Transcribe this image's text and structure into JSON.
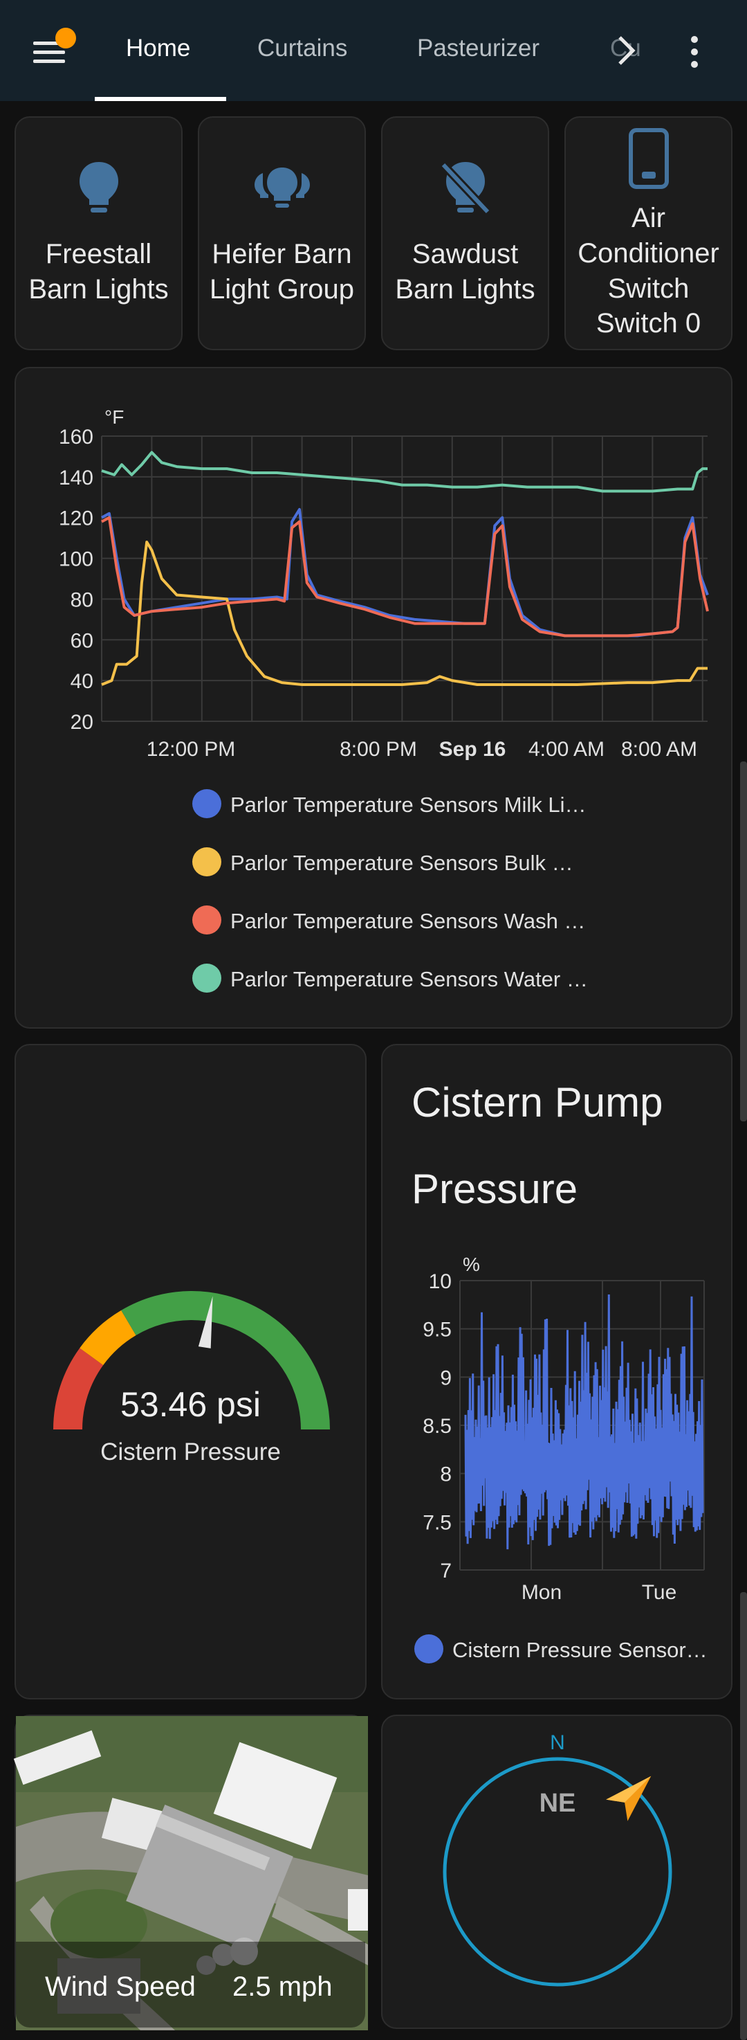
{
  "header": {
    "tabs": [
      {
        "label": "Home",
        "active": true
      },
      {
        "label": "Curtains",
        "active": false
      },
      {
        "label": "Pasteurizer",
        "active": false
      },
      {
        "label": "Cu",
        "active": false
      }
    ]
  },
  "buttons": [
    {
      "label_lines": [
        "Freestall",
        "Barn Lights"
      ],
      "icon": "lightbulb-icon"
    },
    {
      "label_lines": [
        "Heifer Barn",
        "Light Group"
      ],
      "icon": "lightbulb-group-icon"
    },
    {
      "label_lines": [
        "Sawdust",
        "Barn Lights"
      ],
      "icon": "lightbulb-off-icon"
    },
    {
      "label_lines": [
        "Air",
        "Conditioner",
        "Switch",
        "Switch 0"
      ],
      "icon": "phone-switch-icon"
    }
  ],
  "colors": {
    "accent_blue": "#44739e",
    "milk": "#4b6fd9",
    "bulk": "#f4c04a",
    "wash": "#ef6b55",
    "water": "#6fcba8",
    "gauge_red": "#db4437",
    "gauge_orange": "#ffa600",
    "gauge_green": "#43a047",
    "compass_ring": "#1c9ac8",
    "compass_arrow": "#f59b16"
  },
  "chart_data": [
    {
      "type": "line",
      "unit": "°F",
      "yticks": [
        20,
        40,
        60,
        80,
        100,
        120,
        140,
        160
      ],
      "ylim": [
        20,
        160
      ],
      "xlabels": [
        {
          "label": "12:00 PM",
          "bold": false
        },
        {
          "label": "8:00 PM",
          "bold": false
        },
        {
          "label": "Sep 16",
          "bold": true
        },
        {
          "label": "4:00 AM",
          "bold": false
        },
        {
          "label": "8:00 AM",
          "bold": false
        }
      ],
      "x_hours": [
        0,
        2,
        4,
        6,
        8,
        10,
        12,
        14,
        16,
        18,
        20,
        22,
        24
      ],
      "series": [
        {
          "name": "Parlor Temperature Sensors Milk Li…",
          "color": "#4b6fd9",
          "points": [
            [
              0,
              120
            ],
            [
              0.3,
              122
            ],
            [
              0.6,
              100
            ],
            [
              0.9,
              80
            ],
            [
              1.3,
              72
            ],
            [
              2,
              74
            ],
            [
              3,
              76
            ],
            [
              4,
              78
            ],
            [
              5,
              80
            ],
            [
              6,
              80
            ],
            [
              7,
              81
            ],
            [
              7.4,
              80
            ],
            [
              7.6,
              118
            ],
            [
              7.9,
              124
            ],
            [
              8.2,
              92
            ],
            [
              8.6,
              82
            ],
            [
              9.5,
              79
            ],
            [
              10.5,
              76
            ],
            [
              11.5,
              72
            ],
            [
              12.5,
              70
            ],
            [
              13.5,
              69
            ],
            [
              14.5,
              68
            ],
            [
              15.3,
              68
            ],
            [
              15.7,
              116
            ],
            [
              16.0,
              120
            ],
            [
              16.3,
              90
            ],
            [
              16.8,
              72
            ],
            [
              17.5,
              65
            ],
            [
              18.5,
              62
            ],
            [
              20,
              62
            ],
            [
              21,
              62
            ],
            [
              21.4,
              62
            ],
            [
              22,
              63
            ],
            [
              22.8,
              64
            ],
            [
              23,
              66
            ],
            [
              23.3,
              110
            ],
            [
              23.6,
              120
            ],
            [
              23.9,
              92
            ],
            [
              24.2,
              82
            ]
          ]
        },
        {
          "name": "Parlor Temperature Sensors Bulk …",
          "color": "#f4c04a",
          "points": [
            [
              0,
              38
            ],
            [
              0.4,
              40
            ],
            [
              0.6,
              48
            ],
            [
              1.0,
              48
            ],
            [
              1.2,
              50
            ],
            [
              1.4,
              52
            ],
            [
              1.6,
              88
            ],
            [
              1.8,
              108
            ],
            [
              2.0,
              104
            ],
            [
              2.4,
              90
            ],
            [
              3,
              82
            ],
            [
              4,
              81
            ],
            [
              5,
              80
            ],
            [
              5.3,
              65
            ],
            [
              5.8,
              52
            ],
            [
              6.5,
              42
            ],
            [
              7.2,
              39
            ],
            [
              8,
              38
            ],
            [
              10,
              38
            ],
            [
              12,
              38
            ],
            [
              13,
              39
            ],
            [
              13.5,
              42
            ],
            [
              14,
              40
            ],
            [
              15,
              38
            ],
            [
              17,
              38
            ],
            [
              19,
              38
            ],
            [
              21,
              39
            ],
            [
              22,
              39
            ],
            [
              23,
              40
            ],
            [
              23.5,
              40
            ],
            [
              23.8,
              46
            ],
            [
              24.2,
              46
            ]
          ]
        },
        {
          "name": "Parlor Temperature Sensors Wash …",
          "color": "#ef6b55",
          "points": [
            [
              0,
              118
            ],
            [
              0.3,
              120
            ],
            [
              0.6,
              95
            ],
            [
              0.9,
              76
            ],
            [
              1.3,
              72
            ],
            [
              2,
              74
            ],
            [
              3,
              75
            ],
            [
              4,
              76
            ],
            [
              5,
              78
            ],
            [
              6,
              79
            ],
            [
              7,
              80
            ],
            [
              7.3,
              79
            ],
            [
              7.6,
              115
            ],
            [
              7.9,
              118
            ],
            [
              8.2,
              88
            ],
            [
              8.6,
              81
            ],
            [
              9.5,
              78
            ],
            [
              10.5,
              75
            ],
            [
              11.5,
              71
            ],
            [
              12.5,
              68
            ],
            [
              13.5,
              68
            ],
            [
              14.5,
              68
            ],
            [
              15.3,
              68
            ],
            [
              15.7,
              112
            ],
            [
              16.0,
              116
            ],
            [
              16.3,
              86
            ],
            [
              16.8,
              70
            ],
            [
              17.5,
              64
            ],
            [
              18.5,
              62
            ],
            [
              20,
              62
            ],
            [
              21,
              62
            ],
            [
              22,
              63
            ],
            [
              22.8,
              64
            ],
            [
              23,
              66
            ],
            [
              23.3,
              108
            ],
            [
              23.6,
              117
            ],
            [
              23.9,
              90
            ],
            [
              24.2,
              74
            ]
          ]
        },
        {
          "name": "Parlor Temperature Sensors Water …",
          "color": "#6fcba8",
          "points": [
            [
              0,
              143
            ],
            [
              0.5,
              141
            ],
            [
              0.8,
              146
            ],
            [
              1.2,
              141
            ],
            [
              1.6,
              146
            ],
            [
              2,
              152
            ],
            [
              2.4,
              147
            ],
            [
              3,
              145
            ],
            [
              4,
              144
            ],
            [
              5,
              144
            ],
            [
              6,
              142
            ],
            [
              7,
              142
            ],
            [
              8,
              141
            ],
            [
              9,
              140
            ],
            [
              10,
              139
            ],
            [
              11,
              138
            ],
            [
              12,
              136
            ],
            [
              13,
              136
            ],
            [
              14,
              135
            ],
            [
              15,
              135
            ],
            [
              16,
              136
            ],
            [
              17,
              135
            ],
            [
              18,
              135
            ],
            [
              19,
              135
            ],
            [
              20,
              133
            ],
            [
              21,
              133
            ],
            [
              22,
              133
            ],
            [
              23,
              134
            ],
            [
              23.6,
              134
            ],
            [
              23.8,
              142
            ],
            [
              24,
              144
            ],
            [
              24.2,
              144
            ]
          ]
        }
      ]
    },
    {
      "type": "line",
      "unit": "%",
      "yticks": [
        "10",
        "9.5",
        "9",
        "8.5",
        "8",
        "7.5",
        "7"
      ],
      "ylim": [
        7,
        10
      ],
      "xlabels": [
        {
          "label": "Mon"
        },
        {
          "label": "Tue"
        }
      ],
      "series": [
        {
          "name": "Cistern Pressure Sensor…",
          "color": "#4b6fd9"
        }
      ]
    }
  ],
  "gauge": {
    "value": "53.46 psi",
    "name": "Cistern Pressure",
    "fraction": 0.55
  },
  "pump_card": {
    "title": "Cistern Pump Pressure"
  },
  "map_card": {
    "label": "Wind Speed",
    "value": "2.5 mph"
  },
  "compass": {
    "north": "N",
    "direction": "NE"
  }
}
